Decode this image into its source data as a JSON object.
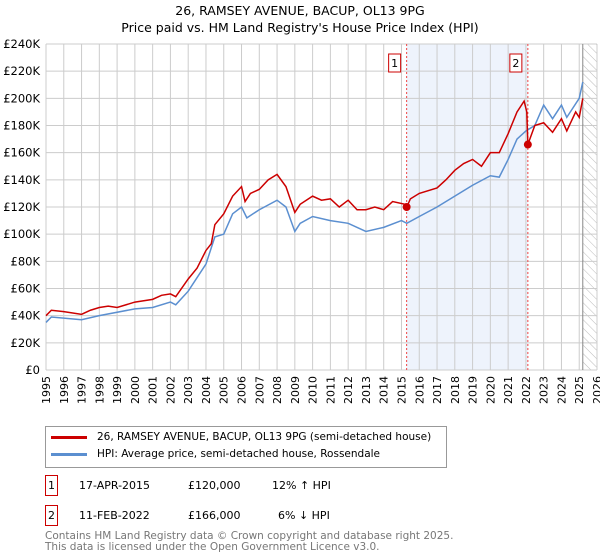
{
  "header": {
    "title": "26, RAMSEY AVENUE, BACUP, OL13 9PG",
    "subtitle": "Price paid vs. HM Land Registry's House Price Index (HPI)"
  },
  "chart_data": {
    "type": "line",
    "title": "26, RAMSEY AVENUE, BACUP, OL13 9PG",
    "subtitle": "Price paid vs. HM Land Registry's House Price Index (HPI)",
    "xlim": [
      1995,
      2026
    ],
    "ylim": [
      0,
      240000
    ],
    "y_ticks": [
      {
        "v": 0,
        "label": "£0"
      },
      {
        "v": 20000,
        "label": "£20K"
      },
      {
        "v": 40000,
        "label": "£40K"
      },
      {
        "v": 60000,
        "label": "£60K"
      },
      {
        "v": 80000,
        "label": "£80K"
      },
      {
        "v": 100000,
        "label": "£100K"
      },
      {
        "v": 120000,
        "label": "£120K"
      },
      {
        "v": 140000,
        "label": "£140K"
      },
      {
        "v": 160000,
        "label": "£160K"
      },
      {
        "v": 180000,
        "label": "£180K"
      },
      {
        "v": 200000,
        "label": "£200K"
      },
      {
        "v": 220000,
        "label": "£220K"
      },
      {
        "v": 240000,
        "label": "£240K"
      }
    ],
    "x_ticks": [
      "1995",
      "1996",
      "1997",
      "1998",
      "1999",
      "2000",
      "2001",
      "2002",
      "2003",
      "2004",
      "2005",
      "2006",
      "2007",
      "2008",
      "2009",
      "2010",
      "2011",
      "2012",
      "2013",
      "2014",
      "2015",
      "2016",
      "2017",
      "2018",
      "2019",
      "2020",
      "2021",
      "2022",
      "2023",
      "2024",
      "2025",
      "2026"
    ],
    "grid": true,
    "shaded_range": [
      2015.29,
      2022.11
    ],
    "forecast_from": 2025.2,
    "series": [
      {
        "name": "26, RAMSEY AVENUE, BACUP, OL13 9PG (semi-detached house)",
        "color": "#cc0000",
        "x": [
          1995,
          1995.3,
          1996,
          1997,
          1997.5,
          1998,
          1998.5,
          1999,
          2000,
          2001,
          2001.5,
          2002,
          2002.3,
          2003,
          2003.5,
          2004,
          2004.3,
          2004.5,
          2005,
          2005.5,
          2006,
          2006.2,
          2006.5,
          2007,
          2007.5,
          2008,
          2008.5,
          2009,
          2009.3,
          2010,
          2010.5,
          2011,
          2011.5,
          2012,
          2012.5,
          2013,
          2013.5,
          2014,
          2014.5,
          2015.2,
          2015.3,
          2015.5,
          2016,
          2017,
          2017.5,
          2018,
          2018.5,
          2019,
          2019.5,
          2020,
          2020.5,
          2021,
          2021.5,
          2021.9,
          2022.05,
          2022.11,
          2022.5,
          2023,
          2023.5,
          2024,
          2024.3,
          2024.8,
          2025,
          2025.2
        ],
        "y": [
          40000,
          44000,
          43000,
          41000,
          44000,
          46000,
          47000,
          46000,
          50000,
          52000,
          55000,
          56000,
          54000,
          67000,
          75000,
          88000,
          93000,
          107000,
          115000,
          128000,
          135000,
          124000,
          130000,
          133000,
          140000,
          144000,
          135000,
          116000,
          122000,
          128000,
          125000,
          126000,
          120000,
          125000,
          118000,
          118000,
          120000,
          118000,
          124000,
          122000,
          120000,
          126000,
          130000,
          134000,
          140000,
          147000,
          152000,
          155000,
          150000,
          160000,
          160000,
          174000,
          190000,
          198000,
          190000,
          166000,
          180000,
          182000,
          175000,
          185000,
          176000,
          190000,
          186000,
          200000
        ]
      },
      {
        "name": "HPI: Average price, semi-detached house, Rossendale",
        "color": "#5b8fd0",
        "x": [
          1995,
          1995.3,
          1997,
          1998,
          2000,
          2001,
          2002,
          2002.3,
          2003,
          2004,
          2004.5,
          2005,
          2005.5,
          2006,
          2006.3,
          2007,
          2008,
          2008.5,
          2009,
          2009.3,
          2010,
          2011,
          2012,
          2013,
          2014,
          2015,
          2015.3,
          2016,
          2017,
          2018,
          2019,
          2020,
          2020.5,
          2021,
          2021.5,
          2022,
          2022.5,
          2023,
          2023.5,
          2024,
          2024.3,
          2025,
          2025.2
        ],
        "y": [
          35000,
          39000,
          37000,
          40000,
          45000,
          46000,
          50000,
          48000,
          58000,
          78000,
          98000,
          100000,
          115000,
          120000,
          112000,
          118000,
          125000,
          120000,
          102000,
          108000,
          113000,
          110000,
          108000,
          102000,
          105000,
          110000,
          108000,
          113000,
          120000,
          128000,
          136000,
          143000,
          142000,
          155000,
          170000,
          176000,
          180000,
          195000,
          185000,
          195000,
          186000,
          200000,
          212000
        ]
      }
    ],
    "markers": [
      {
        "label": "1",
        "x": 2015.29,
        "y": 120000
      },
      {
        "label": "2",
        "x": 2022.11,
        "y": 166000
      }
    ]
  },
  "legend": {
    "items": [
      "26, RAMSEY AVENUE, BACUP, OL13 9PG (semi-detached house)",
      "HPI: Average price, semi-detached house, Rossendale"
    ]
  },
  "transactions": [
    {
      "num": "1",
      "date": "17-APR-2015",
      "price": "£120,000",
      "hpi": "12% ↑ HPI"
    },
    {
      "num": "2",
      "date": "11-FEB-2022",
      "price": "£166,000",
      "hpi": "6% ↓ HPI"
    }
  ],
  "footer": {
    "line1": "Contains HM Land Registry data © Crown copyright and database right 2025.",
    "line2": "This data is licensed under the Open Government Licence v3.0."
  }
}
